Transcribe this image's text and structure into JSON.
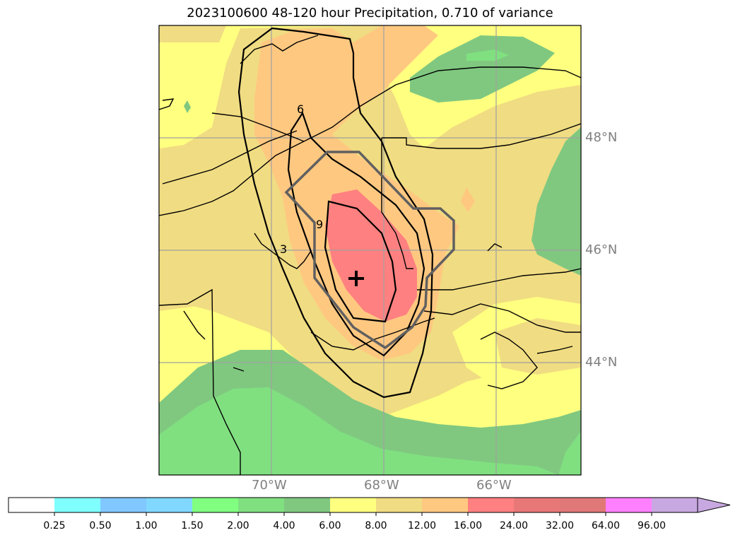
{
  "title": "2023100600 48-120 hour Precipitation, 0.710 of variance",
  "colors": {
    "yellow": "#ffff80",
    "tan": "#f0dc82",
    "orange": "#ffc880",
    "red": "#ff8080",
    "green_light": "#80e080",
    "green_mid": "#80c880",
    "light_green_alt": "#80ff80",
    "cyan": "#80ffff",
    "sky": "#80c8ff",
    "blue": "#80d8ff",
    "dark_red": "#e87878",
    "darker_red": "#e07878",
    "magenta": "#ff80ff",
    "purple": "#c8a8e0",
    "grid": "#a0a0a0",
    "contour": "#000000",
    "outline": "#606060"
  },
  "map": {
    "lat_labels": [
      "48°N",
      "46°N",
      "44°N"
    ],
    "lon_labels": [
      "70°W",
      "68°W",
      "66°W"
    ],
    "contour_labels": [
      "6",
      "9",
      "3"
    ],
    "center_marker": "plus-marker"
  },
  "colorbar": {
    "ticks": [
      "0.25",
      "0.50",
      "1.00",
      "1.50",
      "2.00",
      "4.00",
      "6.00",
      "8.00",
      "12.00",
      "16.00",
      "24.00",
      "32.00",
      "64.00",
      "96.00"
    ],
    "segment_colors": [
      "#ffffff",
      "#80ffff",
      "#80c8ff",
      "#80d8ff",
      "#80ff80",
      "#80e080",
      "#80c880",
      "#ffff80",
      "#f0dc82",
      "#ffc880",
      "#ff8080",
      "#e87878",
      "#e07878",
      "#ff80ff",
      "#c8a8e0"
    ]
  }
}
